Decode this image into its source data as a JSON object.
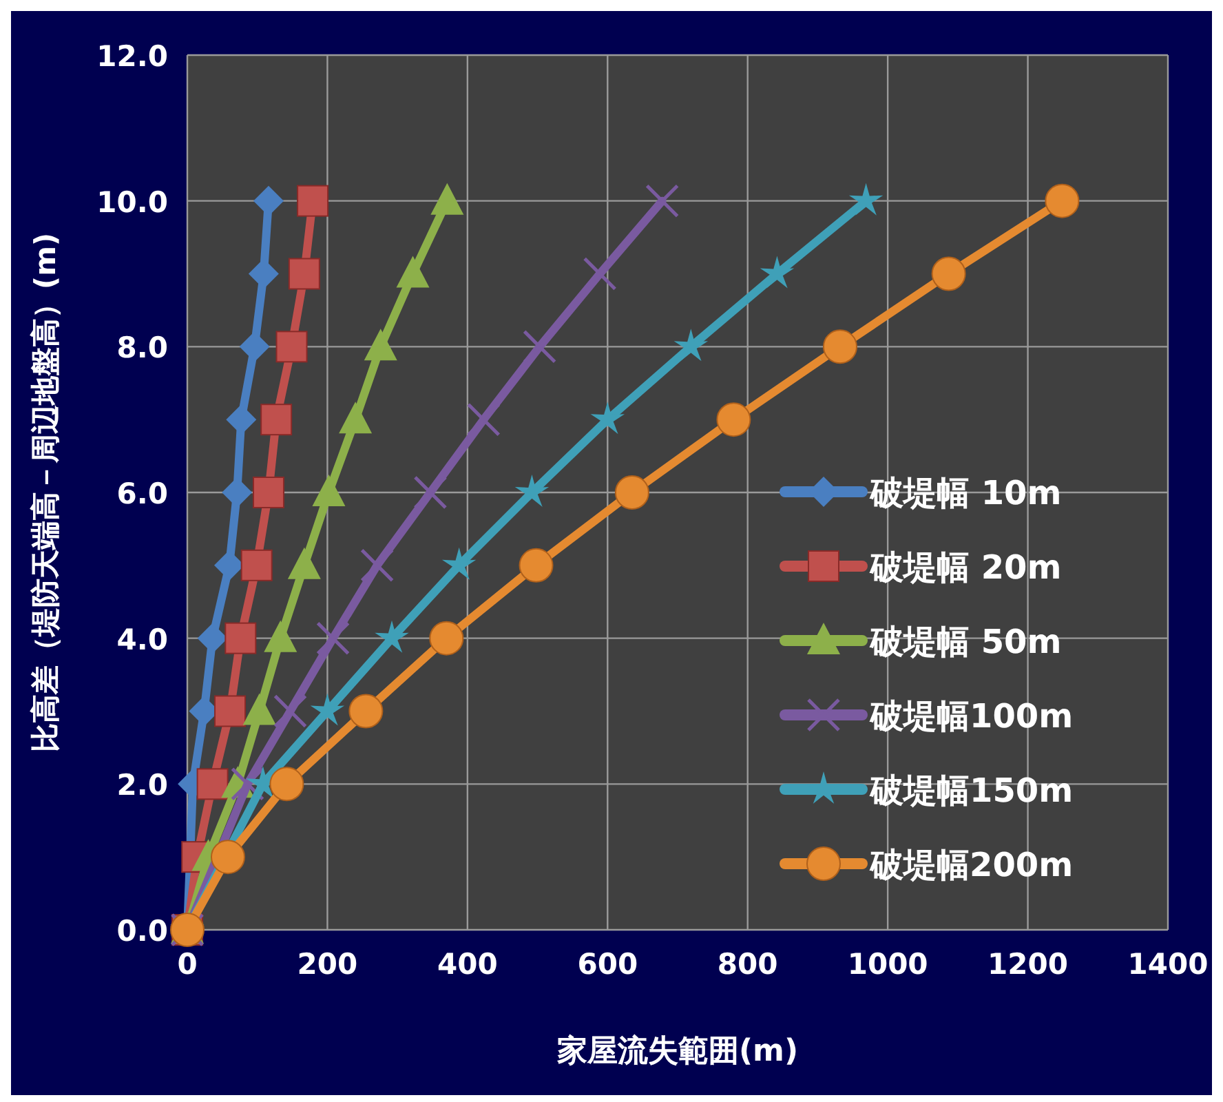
{
  "chart_data": {
    "type": "line",
    "xlabel": "家屋流失範囲(m)",
    "ylabel": "比高差（堤防天端高－周辺地盤高）(m)",
    "series": [
      {
        "name": "破堤幅 10m",
        "color": "#4a7fc1",
        "marker": "diamond",
        "x": [
          0,
          null,
          8,
          24,
          36,
          60,
          71,
          77,
          96,
          109,
          116
        ],
        "values": [
          0,
          null,
          2,
          3,
          4,
          5,
          6,
          7,
          8,
          9,
          10
        ]
      },
      {
        "name": "破堤幅 20m",
        "color": "#c0504d",
        "marker": "square",
        "x": [
          0,
          14,
          36,
          61,
          76,
          99,
          116,
          127,
          149,
          167,
          179
        ],
        "values": [
          0,
          1,
          2,
          3,
          4,
          5,
          6,
          7,
          8,
          9,
          10
        ]
      },
      {
        "name": "破堤幅 50m",
        "color": "#8db04a",
        "marker": "triangle",
        "x": [
          0,
          30,
          72,
          103,
          133,
          167,
          202,
          240,
          276,
          322,
          371
        ],
        "values": [
          0,
          1,
          2,
          3,
          4,
          5,
          6,
          7,
          8,
          9,
          10
        ]
      },
      {
        "name": "破堤幅100m",
        "color": "#7a5aa0",
        "marker": "cross",
        "x": [
          0,
          null,
          86,
          147,
          208,
          271,
          347,
          423,
          503,
          589,
          678
        ],
        "values": [
          0,
          null,
          2,
          3,
          4,
          5,
          6,
          7,
          8,
          9,
          10
        ]
      },
      {
        "name": "破堤幅150m",
        "color": "#3fa0b8",
        "marker": "star",
        "x": [
          0,
          null,
          108,
          200,
          292,
          388,
          492,
          600,
          719,
          842,
          969
        ],
        "values": [
          0,
          null,
          2,
          3,
          4,
          5,
          6,
          7,
          8,
          9,
          10
        ]
      },
      {
        "name": "破堤幅200m",
        "color": "#e58a30",
        "marker": "circle",
        "x": [
          0,
          58,
          142,
          255,
          370,
          498,
          635,
          780,
          932,
          1087,
          1249
        ],
        "values": [
          0,
          1,
          2,
          3,
          4,
          5,
          6,
          7,
          8,
          9,
          10
        ]
      }
    ],
    "xlim": [
      0,
      1400
    ],
    "xticks": [
      0,
      200,
      400,
      600,
      800,
      1000,
      1200,
      1400
    ],
    "ylim": [
      0,
      12
    ],
    "yticks": [
      {
        "value": 0,
        "label": "0.0"
      },
      {
        "value": 2,
        "label": "2.0"
      },
      {
        "value": 4,
        "label": "4.0"
      },
      {
        "value": 6,
        "label": "6.0"
      },
      {
        "value": 8,
        "label": "8.0"
      },
      {
        "value": 10,
        "label": "10.0"
      },
      {
        "value": 12,
        "label": "12.0"
      }
    ],
    "grid": true,
    "legend": "right"
  }
}
